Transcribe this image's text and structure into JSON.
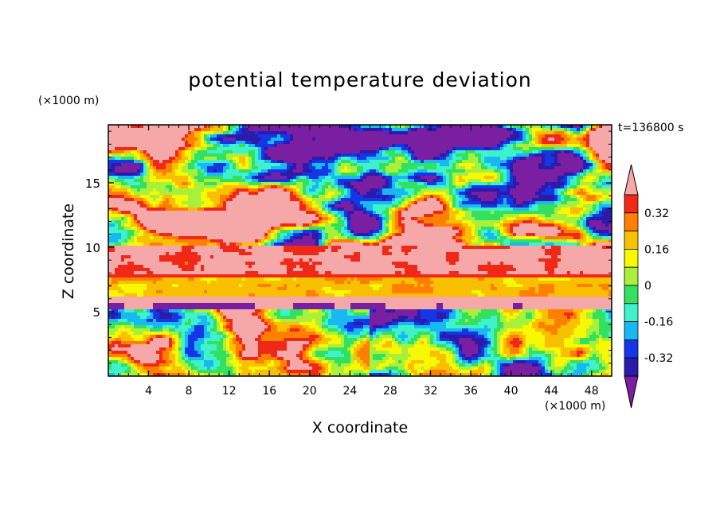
{
  "chart_data": {
    "type": "heatmap",
    "title": "potential temperature deviation",
    "xlabel": "X coordinate",
    "ylabel": "Z coordinate",
    "x_unit": "(×1000 m)",
    "y_unit": "(×1000 m)",
    "time_label": "t=136800 s",
    "xlim": [
      0,
      50
    ],
    "ylim": [
      0,
      19.5
    ],
    "x_ticks": [
      4,
      8,
      12,
      16,
      20,
      24,
      28,
      32,
      36,
      40,
      44,
      48
    ],
    "y_ticks": [
      5,
      10,
      15
    ],
    "colorbar": {
      "levels": [
        -0.4,
        -0.32,
        -0.24,
        -0.16,
        -0.08,
        0,
        0.08,
        0.16,
        0.24,
        0.32,
        0.4
      ],
      "colors": [
        "#7a1fa2",
        "#2b1ba8",
        "#1436e6",
        "#18b8f0",
        "#3ff2cc",
        "#33e060",
        "#a8f03c",
        "#f8f800",
        "#f8c000",
        "#ff8000",
        "#f02818",
        "#f6a8a8"
      ],
      "tick_labels": [
        "0.32",
        "0.16",
        "0",
        "-0.16",
        "-0.32"
      ],
      "tick_values": [
        0.32,
        0.16,
        0,
        -0.16,
        -0.32
      ],
      "extend": "both"
    },
    "structure": [
      {
        "z_range": [
          0,
          5
        ],
        "description_value": "boundary layer: mixed positive and negative anomalies"
      },
      {
        "z_range": [
          5.5,
          6.2
        ],
        "value": 0.4
      },
      {
        "z_range": [
          6.2,
          7.6
        ],
        "value": 0.16
      },
      {
        "z_range": [
          7.6,
          8
        ],
        "value": 0.36
      },
      {
        "z_range": [
          8,
          10
        ],
        "value": 0.4
      },
      {
        "z_range": [
          10,
          19.5
        ],
        "description_value": "alternating patches of strong positive (>0.4) and strong negative (<-0.4) anomalies"
      }
    ]
  }
}
